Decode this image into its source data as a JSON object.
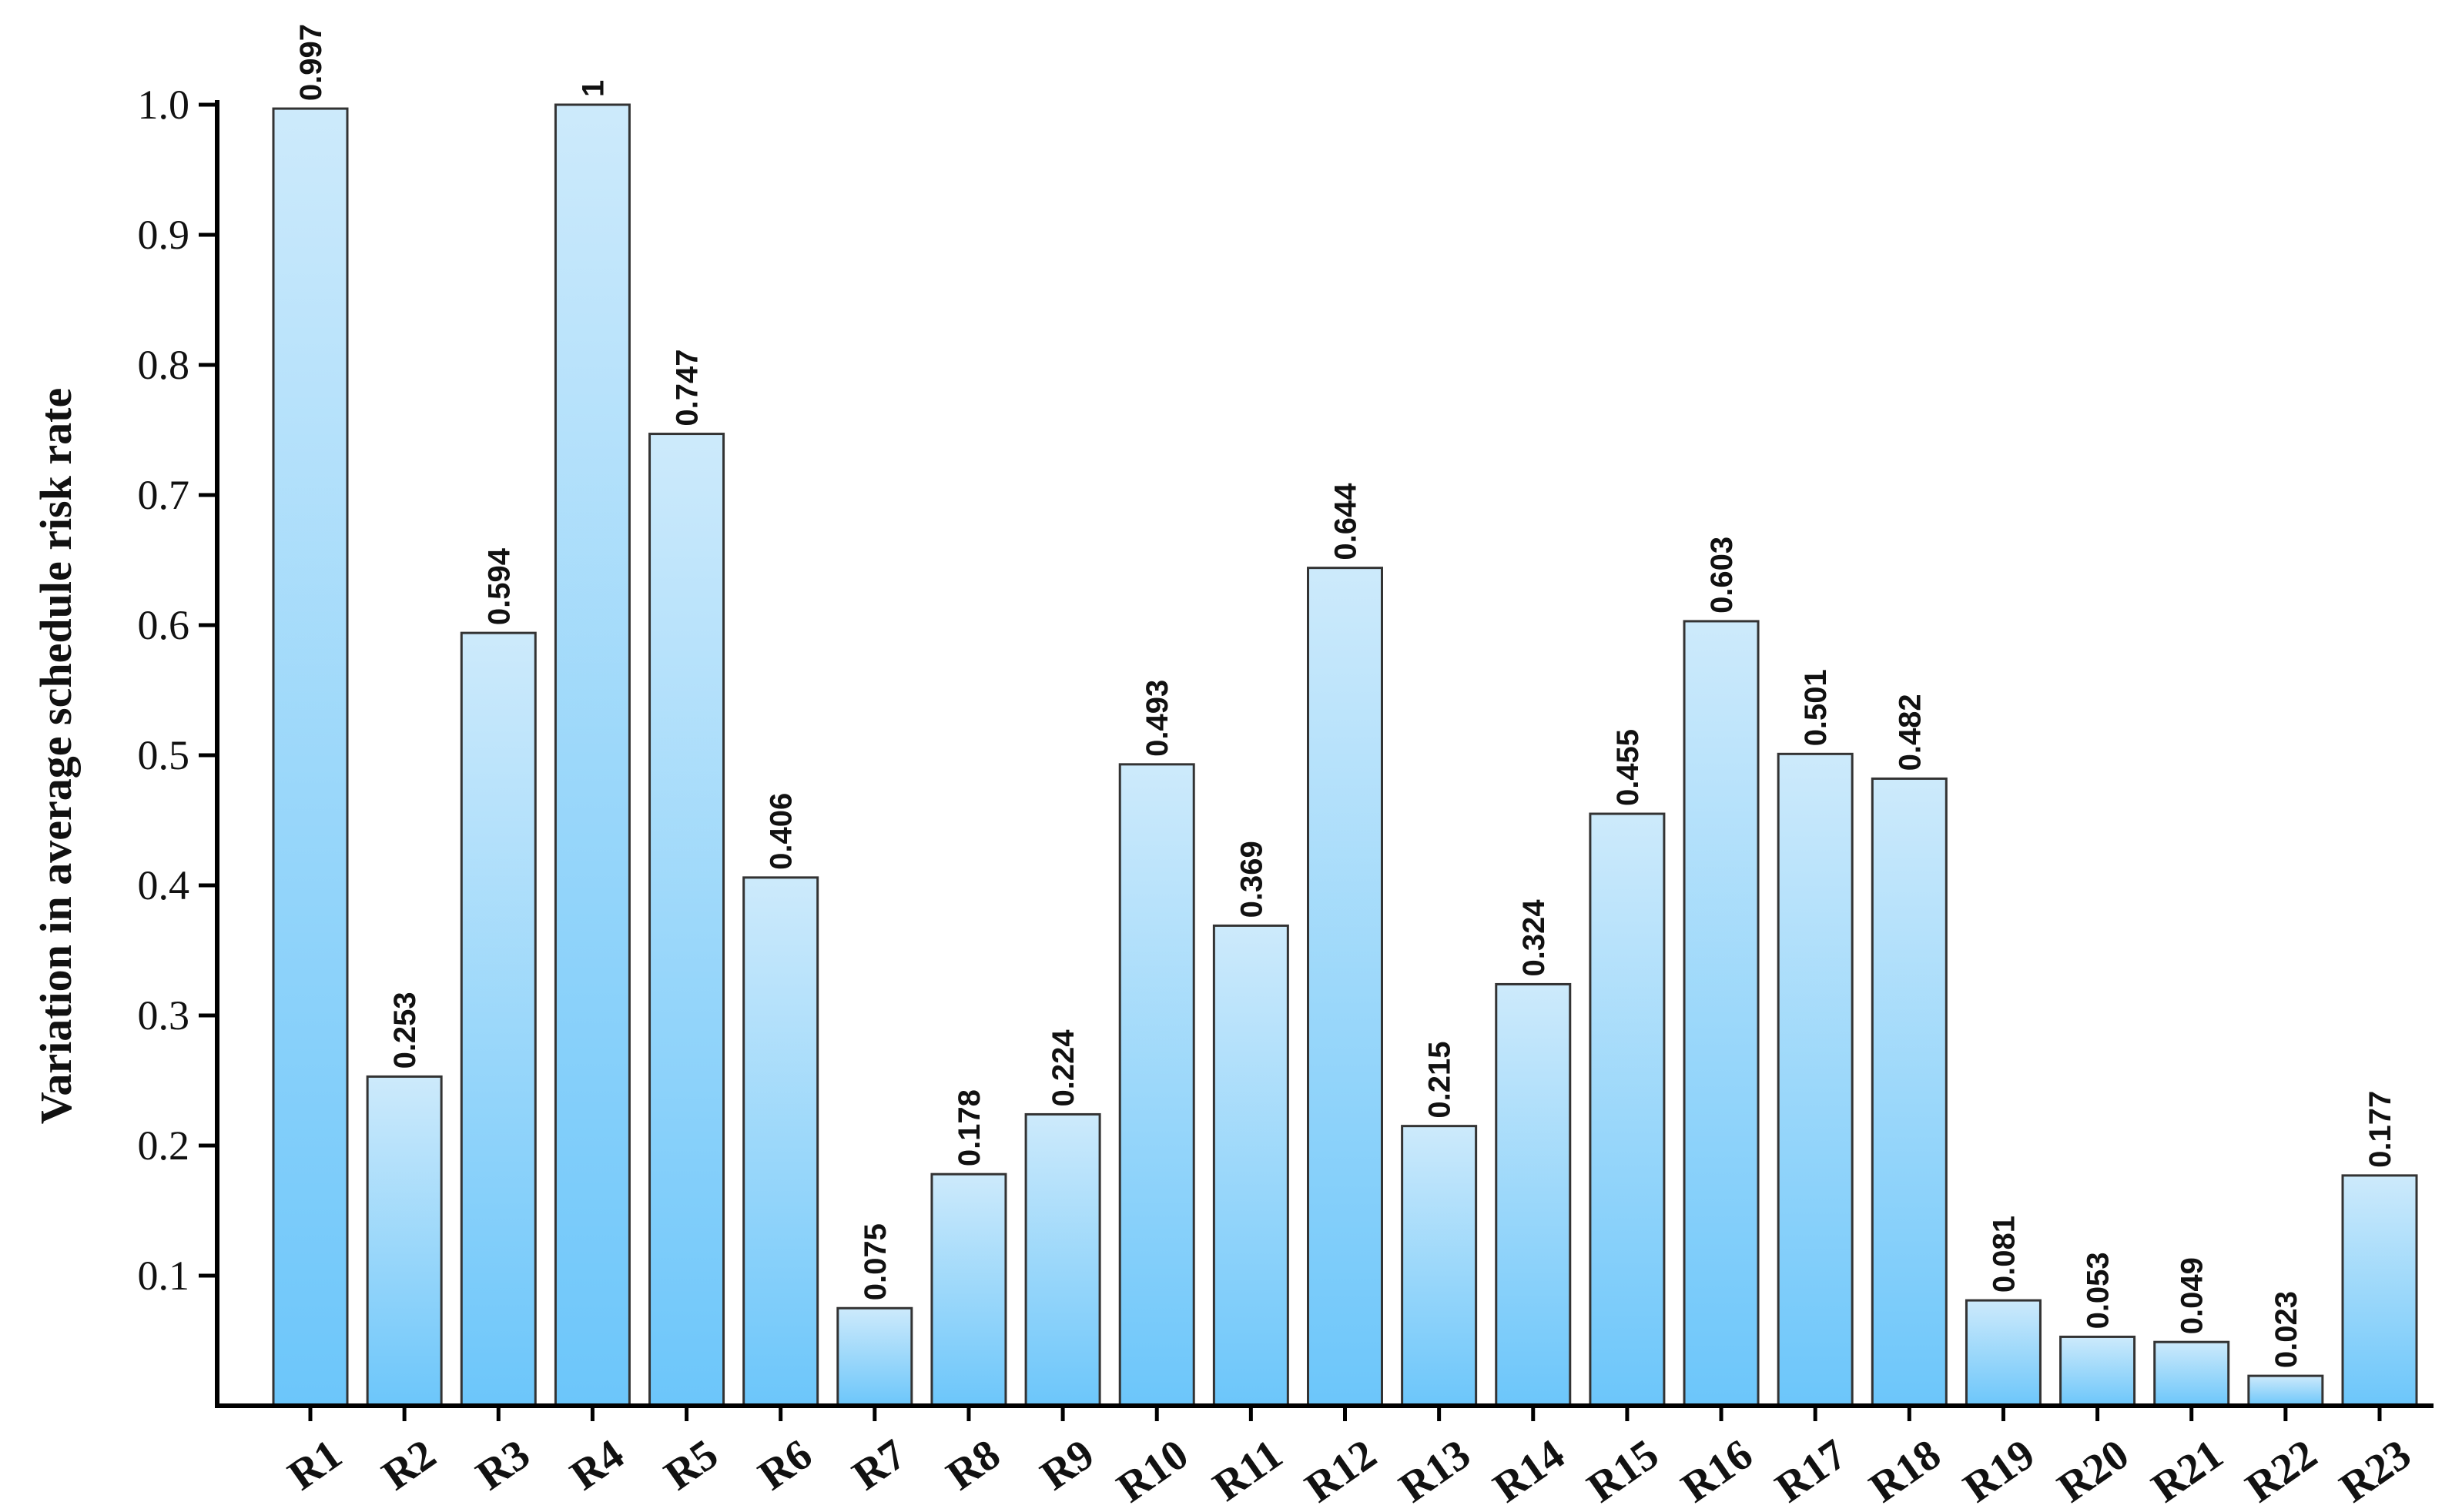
{
  "chart_data": {
    "type": "bar",
    "title": "",
    "xlabel": "",
    "ylabel": "Variation in average schedule risk rate",
    "ylim": [
      0,
      1.0
    ],
    "yticks": [
      "0.1",
      "0.2",
      "0.3",
      "0.4",
      "0.5",
      "0.6",
      "0.7",
      "0.8",
      "0.9",
      "1.0"
    ],
    "grid": false,
    "bar_color_top": "#cdeafb",
    "bar_color_bottom": "#6cc6fa",
    "bar_stroke": "#333333",
    "categories": [
      "R1",
      "R2",
      "R3",
      "R4",
      "R5",
      "R6",
      "R7",
      "R8",
      "R9",
      "R10",
      "R11",
      "R12",
      "R13",
      "R14",
      "R15",
      "R16",
      "R17",
      "R18",
      "R19",
      "R20",
      "R21",
      "R22",
      "R23"
    ],
    "values": [
      0.997,
      0.253,
      0.594,
      1,
      0.747,
      0.406,
      0.075,
      0.178,
      0.224,
      0.493,
      0.369,
      0.644,
      0.215,
      0.324,
      0.455,
      0.603,
      0.501,
      0.482,
      0.081,
      0.053,
      0.049,
      0.023,
      0.177
    ],
    "value_labels": [
      "0.997",
      "0.253",
      "0.594",
      "1",
      "0.747",
      "0.406",
      "0.075",
      "0.178",
      "0.224",
      "0.493",
      "0.369",
      "0.644",
      "0.215",
      "0.324",
      "0.455",
      "0.603",
      "0.501",
      "0.482",
      "0.081",
      "0.053",
      "0.049",
      "0.023",
      "0.177"
    ]
  }
}
